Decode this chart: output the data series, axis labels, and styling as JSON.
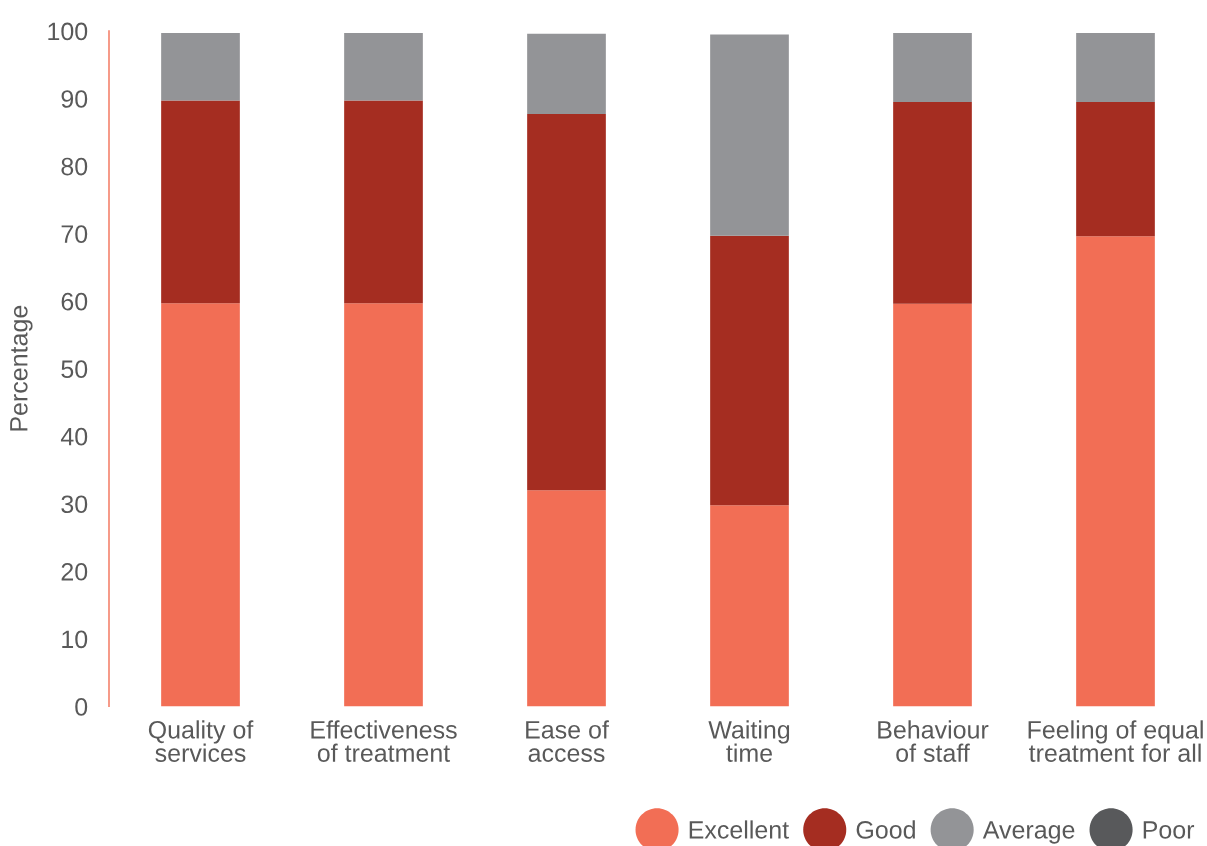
{
  "chart_data": {
    "type": "bar",
    "stacked": true,
    "ylabel": "Percentage",
    "categories": [
      "Quality of\nservices",
      "Effectiveness\nof treatment",
      "Ease of\naccess",
      "Waiting\ntime",
      "Behaviour\nof staff",
      "Feeling of equal\ntreatment for all"
    ],
    "series": [
      {
        "name": "Excellent",
        "color": "#f26e55",
        "values": [
          59.7,
          59.7,
          32.0,
          29.8,
          59.6,
          69.6
        ]
      },
      {
        "name": "Good",
        "color": "#a52d21",
        "values": [
          30.0,
          30.0,
          55.7,
          39.9,
          29.9,
          19.9
        ]
      },
      {
        "name": "Average",
        "color": "#939497",
        "values": [
          10.0,
          10.0,
          11.9,
          29.8,
          10.2,
          10.2
        ]
      },
      {
        "name": "Poor",
        "color": "#58595b",
        "values": [
          null,
          null,
          null,
          null,
          null,
          null
        ]
      }
    ],
    "ylim": [
      0,
      100
    ],
    "yticks": [
      0,
      10,
      20,
      30,
      40,
      50,
      60,
      70,
      80,
      90,
      100
    ],
    "legend": "bottom right",
    "marker": "circle"
  }
}
